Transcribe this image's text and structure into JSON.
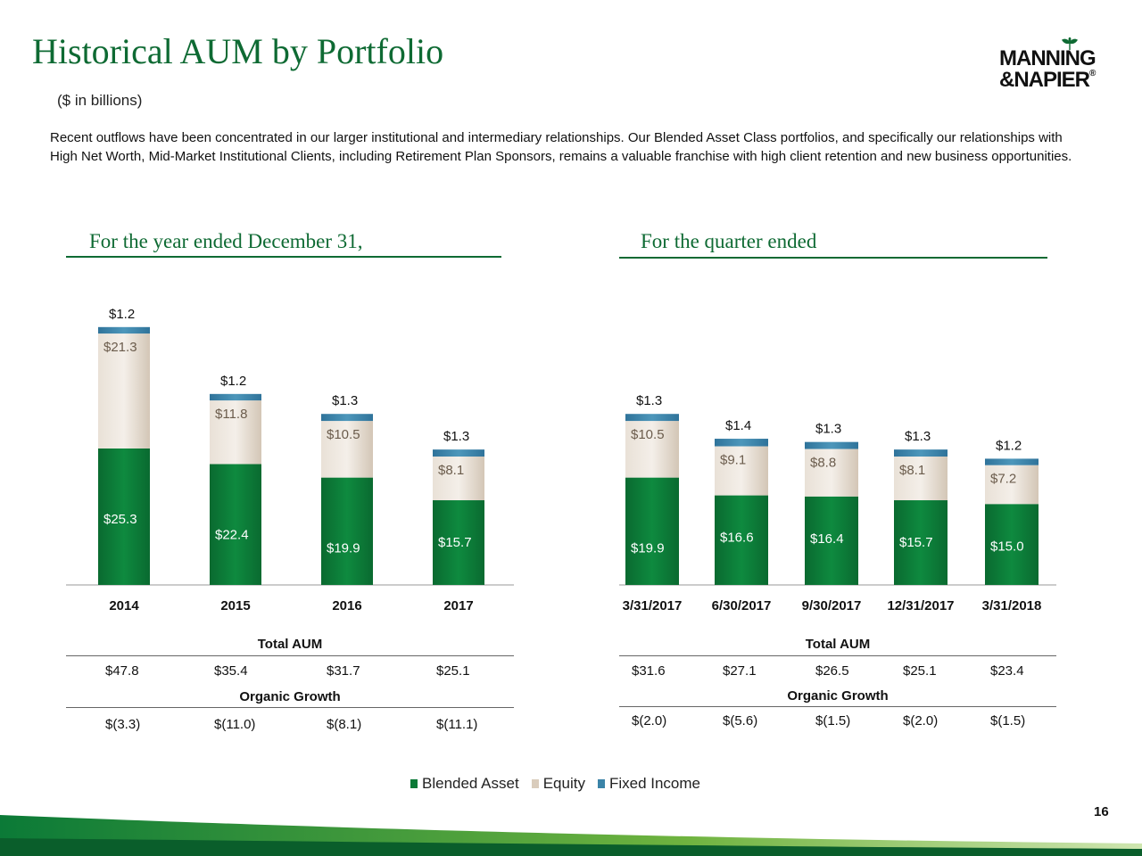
{
  "page": {
    "title": "Historical AUM by Portfolio",
    "subtitle": "($ in billions)",
    "intro": "Recent outflows have been concentrated in our larger institutional and intermediary relationships. Our Blended Asset Class portfolios, and specifically our relationships with High Net Worth, Mid-Market Institutional Clients, including Retirement Plan Sponsors, remains a valuable franchise with high client retention and new business opportunities.",
    "page_number": "16"
  },
  "logo": {
    "line1": "MANNING",
    "line2": "&NAPIER",
    "reg": "®"
  },
  "colors": {
    "blended": "#0b7a37",
    "equity": "#e8dfd4",
    "fixed": "#3b84a8",
    "accent": "#0e6a33"
  },
  "legend": [
    {
      "label": "Blended Asset",
      "color": "#0b7a37"
    },
    {
      "label": "Equity",
      "color": "#d9ccbc"
    },
    {
      "label": "Fixed Income",
      "color": "#3b84a8"
    }
  ],
  "chart_data": [
    {
      "type": "bar",
      "stacked": true,
      "title": "For the year ended December 31,",
      "categories": [
        "2014",
        "2015",
        "2016",
        "2017"
      ],
      "series": [
        {
          "name": "Blended Asset",
          "values": [
            25.3,
            22.4,
            19.9,
            15.7
          ],
          "labels": [
            "$25.3",
            "$22.4",
            "$19.9",
            "$15.7"
          ]
        },
        {
          "name": "Equity",
          "values": [
            21.3,
            11.8,
            10.5,
            8.1
          ],
          "labels": [
            "$21.3",
            "$11.8",
            "$10.5",
            "$8.1"
          ]
        },
        {
          "name": "Fixed Income",
          "values": [
            1.2,
            1.2,
            1.3,
            1.3
          ],
          "labels": [
            "$1.2",
            "$1.2",
            "$1.3",
            "$1.3"
          ]
        }
      ],
      "table": {
        "total_label": "Total AUM",
        "total": [
          "$47.8",
          "$35.4",
          "$31.7",
          "$25.1"
        ],
        "growth_label": "Organic Growth",
        "growth": [
          "$(3.3)",
          "$(11.0)",
          "$(8.1)",
          "$(11.1)"
        ]
      }
    },
    {
      "type": "bar",
      "stacked": true,
      "title": "For the quarter ended",
      "categories": [
        "3/31/2017",
        "6/30/2017",
        "9/30/2017",
        "12/31/2017",
        "3/31/2018"
      ],
      "series": [
        {
          "name": "Blended Asset",
          "values": [
            19.9,
            16.6,
            16.4,
            15.7,
            15.0
          ],
          "labels": [
            "$19.9",
            "$16.6",
            "$16.4",
            "$15.7",
            "$15.0"
          ]
        },
        {
          "name": "Equity",
          "values": [
            10.5,
            9.1,
            8.8,
            8.1,
            7.2
          ],
          "labels": [
            "$10.5",
            "$9.1",
            "$8.8",
            "$8.1",
            "$7.2"
          ]
        },
        {
          "name": "Fixed Income",
          "values": [
            1.3,
            1.4,
            1.3,
            1.3,
            1.2
          ],
          "labels": [
            "$1.3",
            "$1.4",
            "$1.3",
            "$1.3",
            "$1.2"
          ]
        }
      ],
      "table": {
        "total_label": "Total AUM",
        "total": [
          "$31.6",
          "$27.1",
          "$26.5",
          "$25.1",
          "$23.4"
        ],
        "growth_label": "Organic Growth",
        "growth": [
          "$(2.0)",
          "$(5.6)",
          "$(1.5)",
          "$(2.0)",
          "$(1.5)"
        ]
      }
    }
  ]
}
